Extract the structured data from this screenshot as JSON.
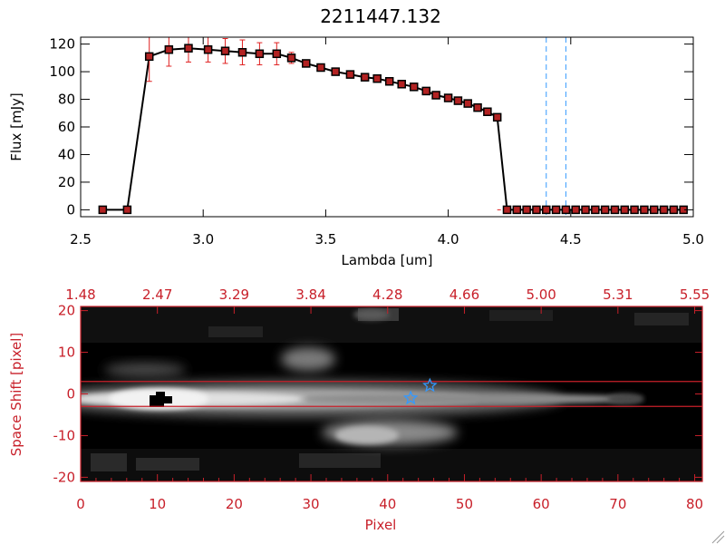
{
  "chart_data": [
    {
      "type": "line",
      "title": "2211447.132",
      "xlabel": "Lambda [um]",
      "ylabel": "Flux [mJy]",
      "xlim": [
        2.5,
        5.0
      ],
      "ylim": [
        -5,
        125
      ],
      "x_ticks": [
        "2.5",
        "3.0",
        "3.5",
        "4.0",
        "4.5",
        "5.0"
      ],
      "y_ticks": [
        "0",
        "20",
        "40",
        "60",
        "80",
        "100",
        "120"
      ],
      "series": [
        {
          "x": [
            2.59,
            2.69,
            2.78,
            2.86,
            2.94,
            3.02,
            3.09,
            3.16,
            3.23,
            3.3,
            3.36,
            3.42,
            3.48,
            3.54,
            3.6,
            3.66,
            3.71,
            3.76,
            3.81,
            3.86,
            3.91,
            3.95,
            4.0,
            4.04,
            4.08,
            4.12,
            4.16,
            4.2,
            4.24,
            4.28,
            4.32,
            4.36,
            4.4,
            4.44,
            4.48,
            4.52,
            4.56,
            4.6,
            4.64,
            4.68,
            4.72,
            4.76,
            4.8,
            4.84,
            4.88,
            4.92,
            4.96
          ],
          "y": [
            0,
            0,
            111,
            116,
            117,
            116,
            115,
            114,
            113,
            113,
            110,
            106,
            103,
            100,
            98,
            96,
            95,
            93,
            91,
            89,
            86,
            83,
            81,
            79,
            77,
            74,
            71,
            67,
            0,
            0,
            0,
            0,
            0,
            0,
            0,
            0,
            0,
            0,
            0,
            0,
            0,
            0,
            0,
            0,
            0,
            0,
            0
          ],
          "err": [
            0,
            0,
            18,
            12,
            10,
            9,
            9,
            9,
            8,
            8,
            4,
            2,
            2,
            2,
            1,
            1,
            1,
            1,
            1,
            1,
            1,
            1,
            1,
            1,
            1,
            1,
            1,
            1,
            0,
            0,
            0,
            0,
            0,
            0,
            0,
            0,
            0,
            0,
            0,
            0,
            0,
            0,
            0,
            0,
            0,
            0,
            0
          ],
          "color": "#000000",
          "marker_color": "#b22222",
          "error_color": "#e02020"
        }
      ],
      "vlines": [
        4.4,
        4.48
      ],
      "vline_color": "#3399ff",
      "baseline_color": "#e02020"
    },
    {
      "type": "heatmap",
      "xlabel": "Pixel",
      "ylabel": "Space Shift [pixel]",
      "xlim": [
        0,
        81
      ],
      "ylim": [
        -21,
        21
      ],
      "x_ticks": [
        "0",
        "10",
        "20",
        "30",
        "40",
        "50",
        "60",
        "70",
        "80"
      ],
      "y_ticks": [
        "-20",
        "-10",
        "0",
        "10",
        "20"
      ],
      "top_axis_ticks": [
        "1.48",
        "2.47",
        "3.29",
        "3.84",
        "4.28",
        "4.66",
        "5.00",
        "5.31",
        "5.55"
      ],
      "aperture_lines": [
        3,
        -3
      ],
      "markers": [
        {
          "x": 43,
          "y": -1
        },
        {
          "x": 45.5,
          "y": 2
        }
      ],
      "marker_color": "#3399ff",
      "frame_color": "#c8202a"
    }
  ]
}
